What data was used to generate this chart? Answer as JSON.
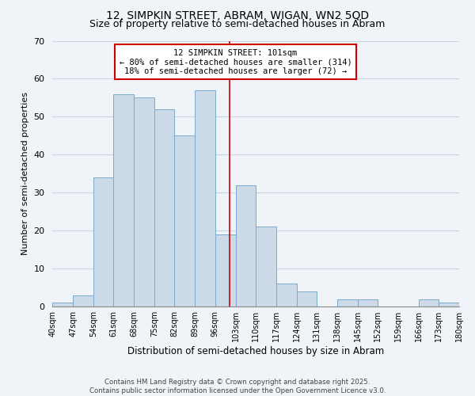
{
  "title": "12, SIMPKIN STREET, ABRAM, WIGAN, WN2 5QD",
  "subtitle": "Size of property relative to semi-detached houses in Abram",
  "xlabel": "Distribution of semi-detached houses by size in Abram",
  "ylabel": "Number of semi-detached properties",
  "bin_labels": [
    "40sqm",
    "47sqm",
    "54sqm",
    "61sqm",
    "68sqm",
    "75sqm",
    "82sqm",
    "89sqm",
    "96sqm",
    "103sqm",
    "110sqm",
    "117sqm",
    "124sqm",
    "131sqm",
    "138sqm",
    "145sqm",
    "152sqm",
    "159sqm",
    "166sqm",
    "173sqm",
    "180sqm"
  ],
  "bin_edges": [
    40,
    47,
    54,
    61,
    68,
    75,
    82,
    89,
    96,
    103,
    110,
    117,
    124,
    131,
    138,
    145,
    152,
    159,
    166,
    173,
    180
  ],
  "bar_heights": [
    1,
    3,
    34,
    56,
    55,
    52,
    45,
    57,
    19,
    32,
    21,
    6,
    4,
    0,
    2,
    2,
    0,
    0,
    2,
    1,
    0
  ],
  "bar_color": "#ccd9e8",
  "bar_edgecolor": "#7aaac8",
  "property_value": 101,
  "vline_color": "#cc0000",
  "annotation_line1": "12 SIMPKIN STREET: 101sqm",
  "annotation_line2": "← 80% of semi-detached houses are smaller (314)",
  "annotation_line3": "18% of semi-detached houses are larger (72) →",
  "annotation_box_edgecolor": "#cc0000",
  "ylim": [
    0,
    70
  ],
  "yticks": [
    0,
    10,
    20,
    30,
    40,
    50,
    60,
    70
  ],
  "bg_color": "#f0f4f8",
  "footer_line1": "Contains HM Land Registry data © Crown copyright and database right 2025.",
  "footer_line2": "Contains public sector information licensed under the Open Government Licence v3.0.",
  "grid_color": "#c8d4e0",
  "title_fontsize": 10,
  "subtitle_fontsize": 9
}
